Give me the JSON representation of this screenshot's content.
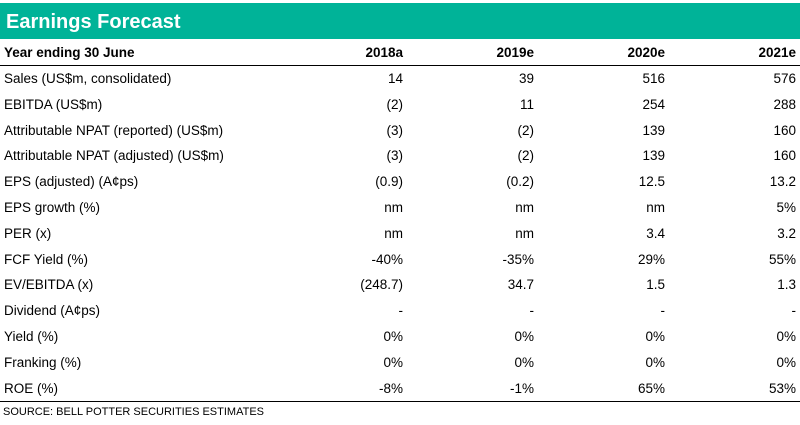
{
  "header": {
    "title": "Earnings Forecast"
  },
  "table": {
    "columns": [
      "Year ending 30 June",
      "2018a",
      "2019e",
      "2020e",
      "2021e"
    ],
    "rows": [
      {
        "label": "Sales (US$m, consolidated)",
        "values": [
          "14",
          "39",
          "516",
          "576"
        ]
      },
      {
        "label": "EBITDA (US$m)",
        "values": [
          "(2)",
          "11",
          "254",
          "288"
        ]
      },
      {
        "label": "Attributable NPAT (reported) (US$m)",
        "values": [
          "(3)",
          "(2)",
          "139",
          "160"
        ]
      },
      {
        "label": "Attributable NPAT (adjusted) (US$m)",
        "values": [
          "(3)",
          "(2)",
          "139",
          "160"
        ]
      },
      {
        "label": "EPS (adjusted) (A¢ps)",
        "values": [
          "(0.9)",
          "(0.2)",
          "12.5",
          "13.2"
        ]
      },
      {
        "label": "EPS growth (%)",
        "values": [
          "nm",
          "nm",
          "nm",
          "5%"
        ]
      },
      {
        "label": "PER (x)",
        "values": [
          "nm",
          "nm",
          "3.4",
          "3.2"
        ]
      },
      {
        "label": "FCF Yield (%)",
        "values": [
          "-40%",
          "-35%",
          "29%",
          "55%"
        ]
      },
      {
        "label": "EV/EBITDA (x)",
        "values": [
          "(248.7)",
          "34.7",
          "1.5",
          "1.3"
        ]
      },
      {
        "label": "Dividend (A¢ps)",
        "values": [
          "-",
          "-",
          "-",
          "-"
        ]
      },
      {
        "label": "Yield (%)",
        "values": [
          "0%",
          "0%",
          "0%",
          "0%"
        ]
      },
      {
        "label": "Franking (%)",
        "values": [
          "0%",
          "0%",
          "0%",
          "0%"
        ]
      },
      {
        "label": "ROE (%)",
        "values": [
          "-8%",
          "-1%",
          "65%",
          "53%"
        ]
      }
    ]
  },
  "footer": {
    "source": "SOURCE: BELL POTTER SECURITIES ESTIMATES"
  },
  "colors": {
    "banner": "#00b398",
    "banner_text": "#ffffff"
  }
}
